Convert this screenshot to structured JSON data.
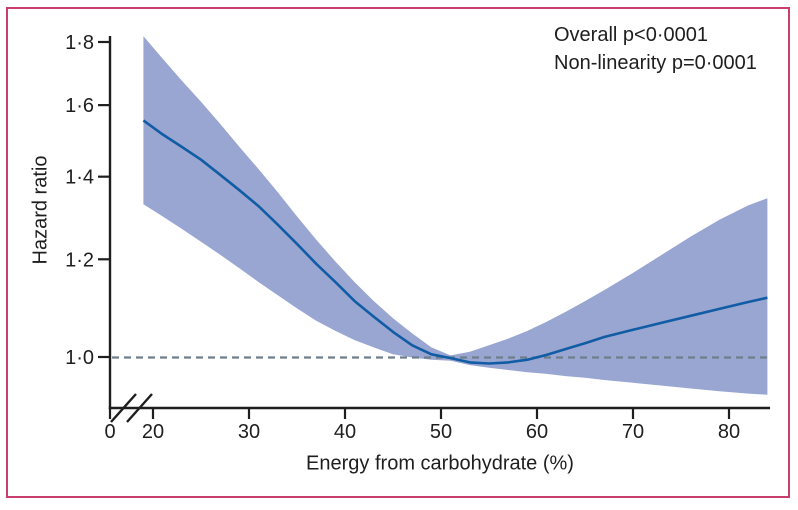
{
  "figure": {
    "background": "#ffffff",
    "frame_color": "#C93E6A"
  },
  "chart_data": {
    "type": "line",
    "title": "",
    "xlabel": "Energy from carbohydrate (%)",
    "ylabel": "Hazard ratio",
    "annotations": [
      "Overall p<0·0001",
      "Non-linearity p=0·0001"
    ],
    "legend_position": "none",
    "grid": false,
    "x_axis": {
      "ticks": [
        0,
        20,
        30,
        40,
        50,
        60,
        70,
        80
      ],
      "tick_labels": [
        "0",
        "20",
        "30",
        "40",
        "50",
        "60",
        "70",
        "80"
      ],
      "data_range": [
        19,
        84
      ],
      "axis_break_between": [
        0,
        20
      ]
    },
    "y_axis": {
      "scale": "log",
      "ticks": [
        1.0,
        1.2,
        1.4,
        1.6,
        1.8
      ],
      "tick_labels": [
        "1·0",
        "1·2",
        "1·4",
        "1·6",
        "1·8"
      ],
      "reference_line": 1.0
    },
    "x": [
      19,
      21,
      23,
      25,
      27,
      29,
      31,
      33,
      35,
      37,
      39,
      41,
      43,
      45,
      47,
      49,
      51,
      53,
      55,
      57,
      59,
      61,
      63,
      65,
      67,
      70,
      73,
      76,
      79,
      82,
      84
    ],
    "series": [
      {
        "name": "hazard_ratio",
        "values": [
          1.555,
          1.515,
          1.48,
          1.445,
          1.405,
          1.365,
          1.325,
          1.28,
          1.235,
          1.19,
          1.15,
          1.11,
          1.078,
          1.048,
          1.022,
          1.005,
          0.998,
          0.99,
          0.988,
          0.99,
          0.995,
          1.004,
          1.015,
          1.026,
          1.038,
          1.052,
          1.066,
          1.08,
          1.094,
          1.108,
          1.117
        ]
      },
      {
        "name": "ci_upper",
        "values": [
          1.82,
          1.745,
          1.675,
          1.61,
          1.545,
          1.48,
          1.42,
          1.36,
          1.3,
          1.245,
          1.195,
          1.15,
          1.11,
          1.075,
          1.045,
          1.018,
          1.003,
          1.01,
          1.022,
          1.035,
          1.05,
          1.068,
          1.088,
          1.11,
          1.133,
          1.17,
          1.21,
          1.252,
          1.292,
          1.327,
          1.345
        ]
      },
      {
        "name": "ci_lower",
        "values": [
          1.33,
          1.3,
          1.27,
          1.24,
          1.21,
          1.18,
          1.15,
          1.122,
          1.095,
          1.07,
          1.05,
          1.032,
          1.018,
          1.005,
          0.999,
          0.995,
          0.993,
          0.985,
          0.98,
          0.976,
          0.972,
          0.969,
          0.965,
          0.962,
          0.958,
          0.953,
          0.948,
          0.943,
          0.938,
          0.934,
          0.932
        ]
      }
    ],
    "colors": {
      "line": "#105CA5",
      "band": "#9AA6D2",
      "reference_dash": "#6E7E8A",
      "axis": "#1E1E1E",
      "frame": "#C93E6A"
    }
  }
}
